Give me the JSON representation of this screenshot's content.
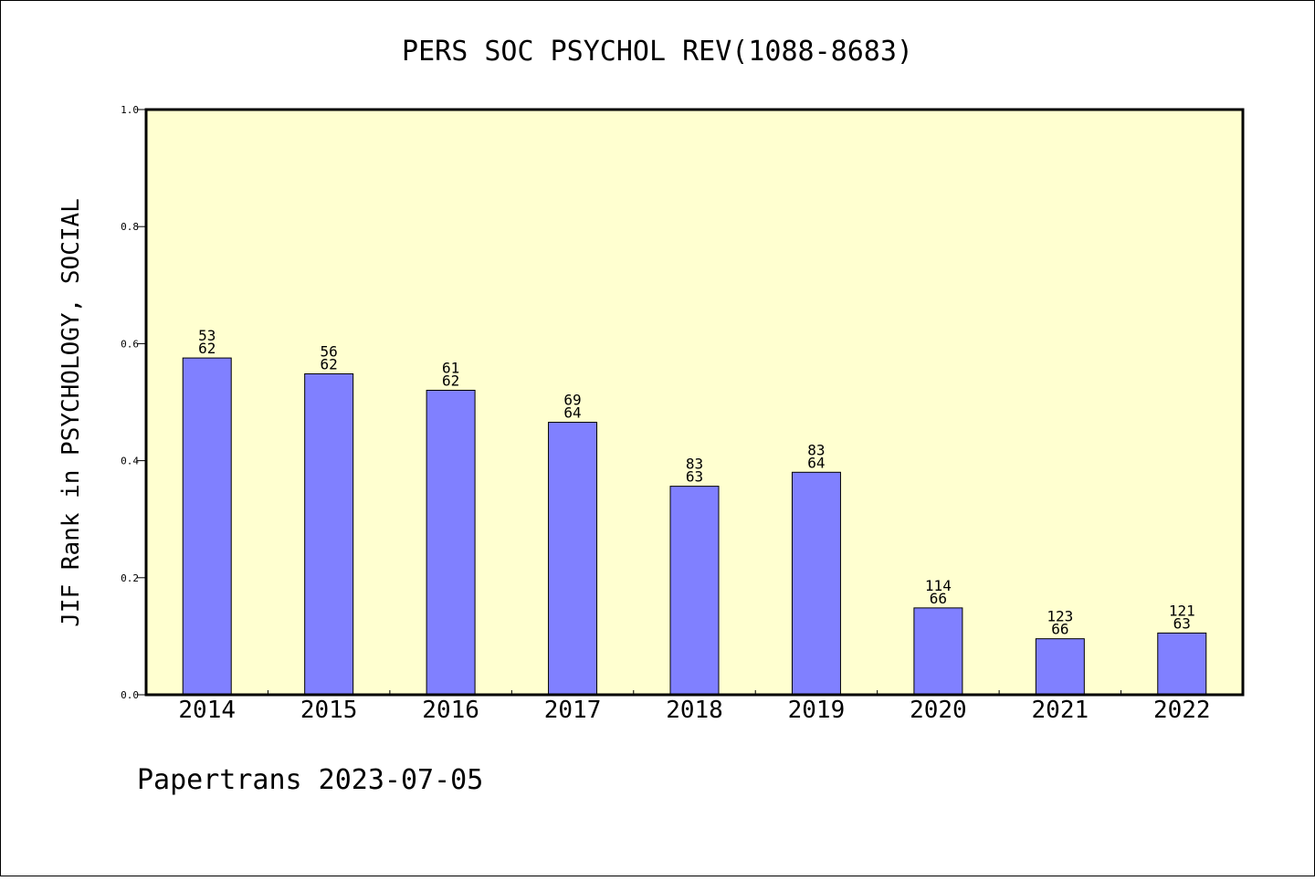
{
  "chart_data": {
    "type": "bar",
    "title": "PERS SOC PSYCHOL REV(1088-8683)",
    "ylabel": "JIF Rank in PSYCHOLOGY, SOCIAL",
    "xlabel": "",
    "footer": "Papertrans 2023-07-05",
    "ylim": [
      0,
      1.0
    ],
    "yticks": [
      0.0,
      0.2,
      0.4,
      0.6,
      0.8,
      1.0
    ],
    "ytick_labels": [
      "0.0",
      "0.2",
      "0.4",
      "0.6",
      "0.8",
      "1.0"
    ],
    "categories": [
      "2014",
      "2015",
      "2016",
      "2017",
      "2018",
      "2019",
      "2020",
      "2021",
      "2022"
    ],
    "values": [
      0.5755,
      0.5484,
      0.5203,
      0.4656,
      0.3563,
      0.3802,
      0.1484,
      0.0957,
      0.1055
    ],
    "rank": [
      "53",
      "56",
      "61",
      "69",
      "83",
      "83",
      "114",
      "123",
      "121"
    ],
    "total": [
      "62",
      "62",
      "62",
      "64",
      "63",
      "64",
      "66",
      "66",
      "63"
    ],
    "grid": false,
    "colors": {
      "bar_fill": "#8080ff",
      "bar_stroke": "#000000",
      "plot_background": "#ffffd0",
      "frame": "#000000"
    }
  }
}
